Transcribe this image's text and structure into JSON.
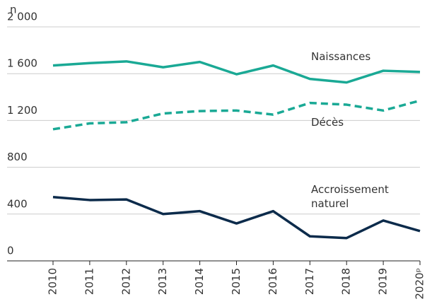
{
  "chart_data": {
    "type": "line",
    "y_label": "n",
    "categories": [
      "2010",
      "2011",
      "2012",
      "2013",
      "2014",
      "2015",
      "2016",
      "2017",
      "2018",
      "2019",
      "2020ᵖ"
    ],
    "series": [
      {
        "name": "Naissances",
        "color": "#1aa995",
        "dashed": false,
        "values": [
          1670,
          1690,
          1705,
          1655,
          1700,
          1595,
          1670,
          1555,
          1525,
          1625,
          1615
        ]
      },
      {
        "name": "Décès",
        "color": "#1aa995",
        "dashed": true,
        "values": [
          1125,
          1175,
          1185,
          1260,
          1280,
          1285,
          1250,
          1350,
          1335,
          1285,
          1370
        ]
      },
      {
        "name": "Accroissement naturel",
        "color": "#0c2b4b",
        "dashed": false,
        "values": [
          545,
          520,
          525,
          400,
          425,
          320,
          425,
          210,
          195,
          345,
          255
        ]
      }
    ],
    "ylim": [
      0,
      2000
    ],
    "yticks": [
      0,
      400,
      800,
      {
        "value": 1200,
        "label": "1 200"
      },
      {
        "value": 1600,
        "label": "1 600"
      },
      {
        "value": 2000,
        "label": "2 000"
      }
    ],
    "grid": true
  }
}
